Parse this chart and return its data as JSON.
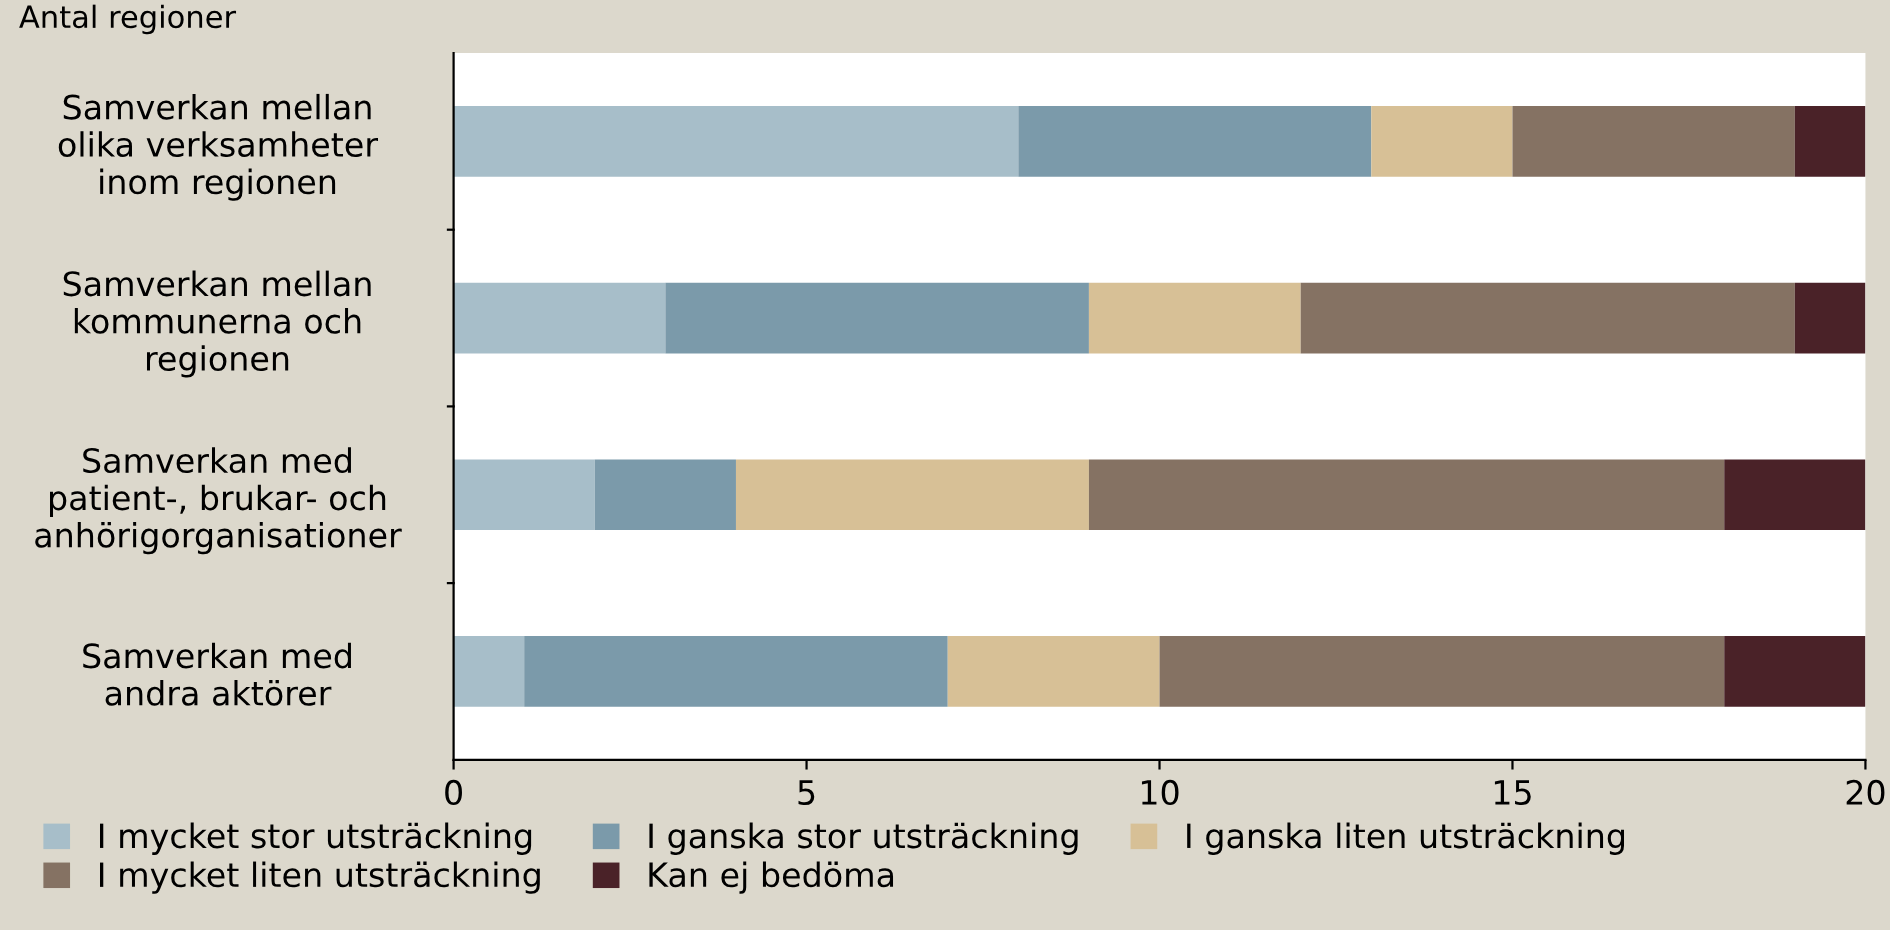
{
  "chart_data": {
    "type": "bar",
    "orientation": "horizontal",
    "stacked": true,
    "ylabel": "Antal regioner",
    "categories": [
      "Samverkan mellan\nolika verksamheter\ninom regionen",
      "Samverkan mellan\nkommunerna och\nregionen",
      "Samverkan med\npatient-, brukar- och\nanhörigorganisationer",
      "Samverkan med\nandra aktörer"
    ],
    "series": [
      {
        "name": "I mycket stor utsträckning",
        "color": "#a7bec9",
        "values": [
          8,
          3,
          2,
          1
        ]
      },
      {
        "name": "I ganska stor utsträckning",
        "color": "#7b9aaa",
        "values": [
          5,
          6,
          2,
          6
        ]
      },
      {
        "name": "I ganska liten utsträckning",
        "color": "#d7c096",
        "values": [
          2,
          3,
          5,
          3
        ]
      },
      {
        "name": "I mycket liten utsträckning",
        "color": "#857263",
        "values": [
          4,
          7,
          9,
          8
        ]
      },
      {
        "name": "Kan ej bedöma",
        "color": "#4a2228",
        "values": [
          1,
          1,
          2,
          2
        ]
      }
    ],
    "xlim": [
      0,
      20
    ],
    "xticks": [
      0,
      5,
      10,
      15,
      20
    ],
    "grid": false,
    "legend": "bottom"
  }
}
